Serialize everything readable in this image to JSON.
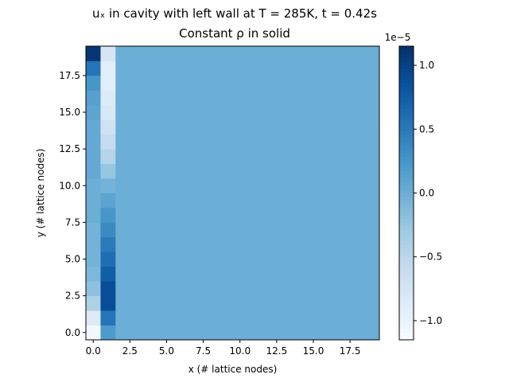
{
  "title": {
    "line1": "uₓ in cavity with left wall at T = 285K, t = 0.42s",
    "line2": "Constant ρ in solid"
  },
  "chart_data": {
    "type": "heatmap",
    "xlabel": "x (# lattice nodes)",
    "ylabel": "y (# lattice nodes)",
    "xlim": [
      -0.5,
      19.5
    ],
    "ylim": [
      -0.5,
      19.5
    ],
    "x_ticks": [
      "0.0",
      "2.5",
      "5.0",
      "7.5",
      "10.0",
      "12.5",
      "15.0",
      "17.5"
    ],
    "y_ticks": [
      "0.0",
      "2.5",
      "5.0",
      "7.5",
      "10.0",
      "12.5",
      "15.0",
      "17.5"
    ],
    "colormap": "Blues",
    "colorbar": {
      "range": [
        -1.15e-05,
        1.15e-05
      ],
      "scale_label": "1e−5",
      "ticks": [
        "−1.0",
        "−0.5",
        "0.0",
        "0.5",
        "1.0"
      ]
    },
    "grid_shape": [
      20,
      20
    ],
    "background_value": 0.0,
    "columns": [
      {
        "x": 0,
        "values_1e-5": [
          -1.1,
          -0.85,
          -0.4,
          -0.2,
          -0.1,
          -0.05,
          -0.05,
          -0.05,
          0.0,
          0.0,
          0.0,
          0.05,
          0.05,
          0.05,
          0.05,
          0.1,
          0.15,
          0.25,
          0.55,
          1.1
        ]
      },
      {
        "x": 1,
        "values_1e-5": [
          0.2,
          0.55,
          0.9,
          0.9,
          0.75,
          0.6,
          0.5,
          0.35,
          0.25,
          0.1,
          -0.05,
          -0.25,
          -0.45,
          -0.6,
          -0.7,
          -0.8,
          -0.85,
          -0.9,
          -0.9,
          -0.75
        ]
      }
    ]
  }
}
